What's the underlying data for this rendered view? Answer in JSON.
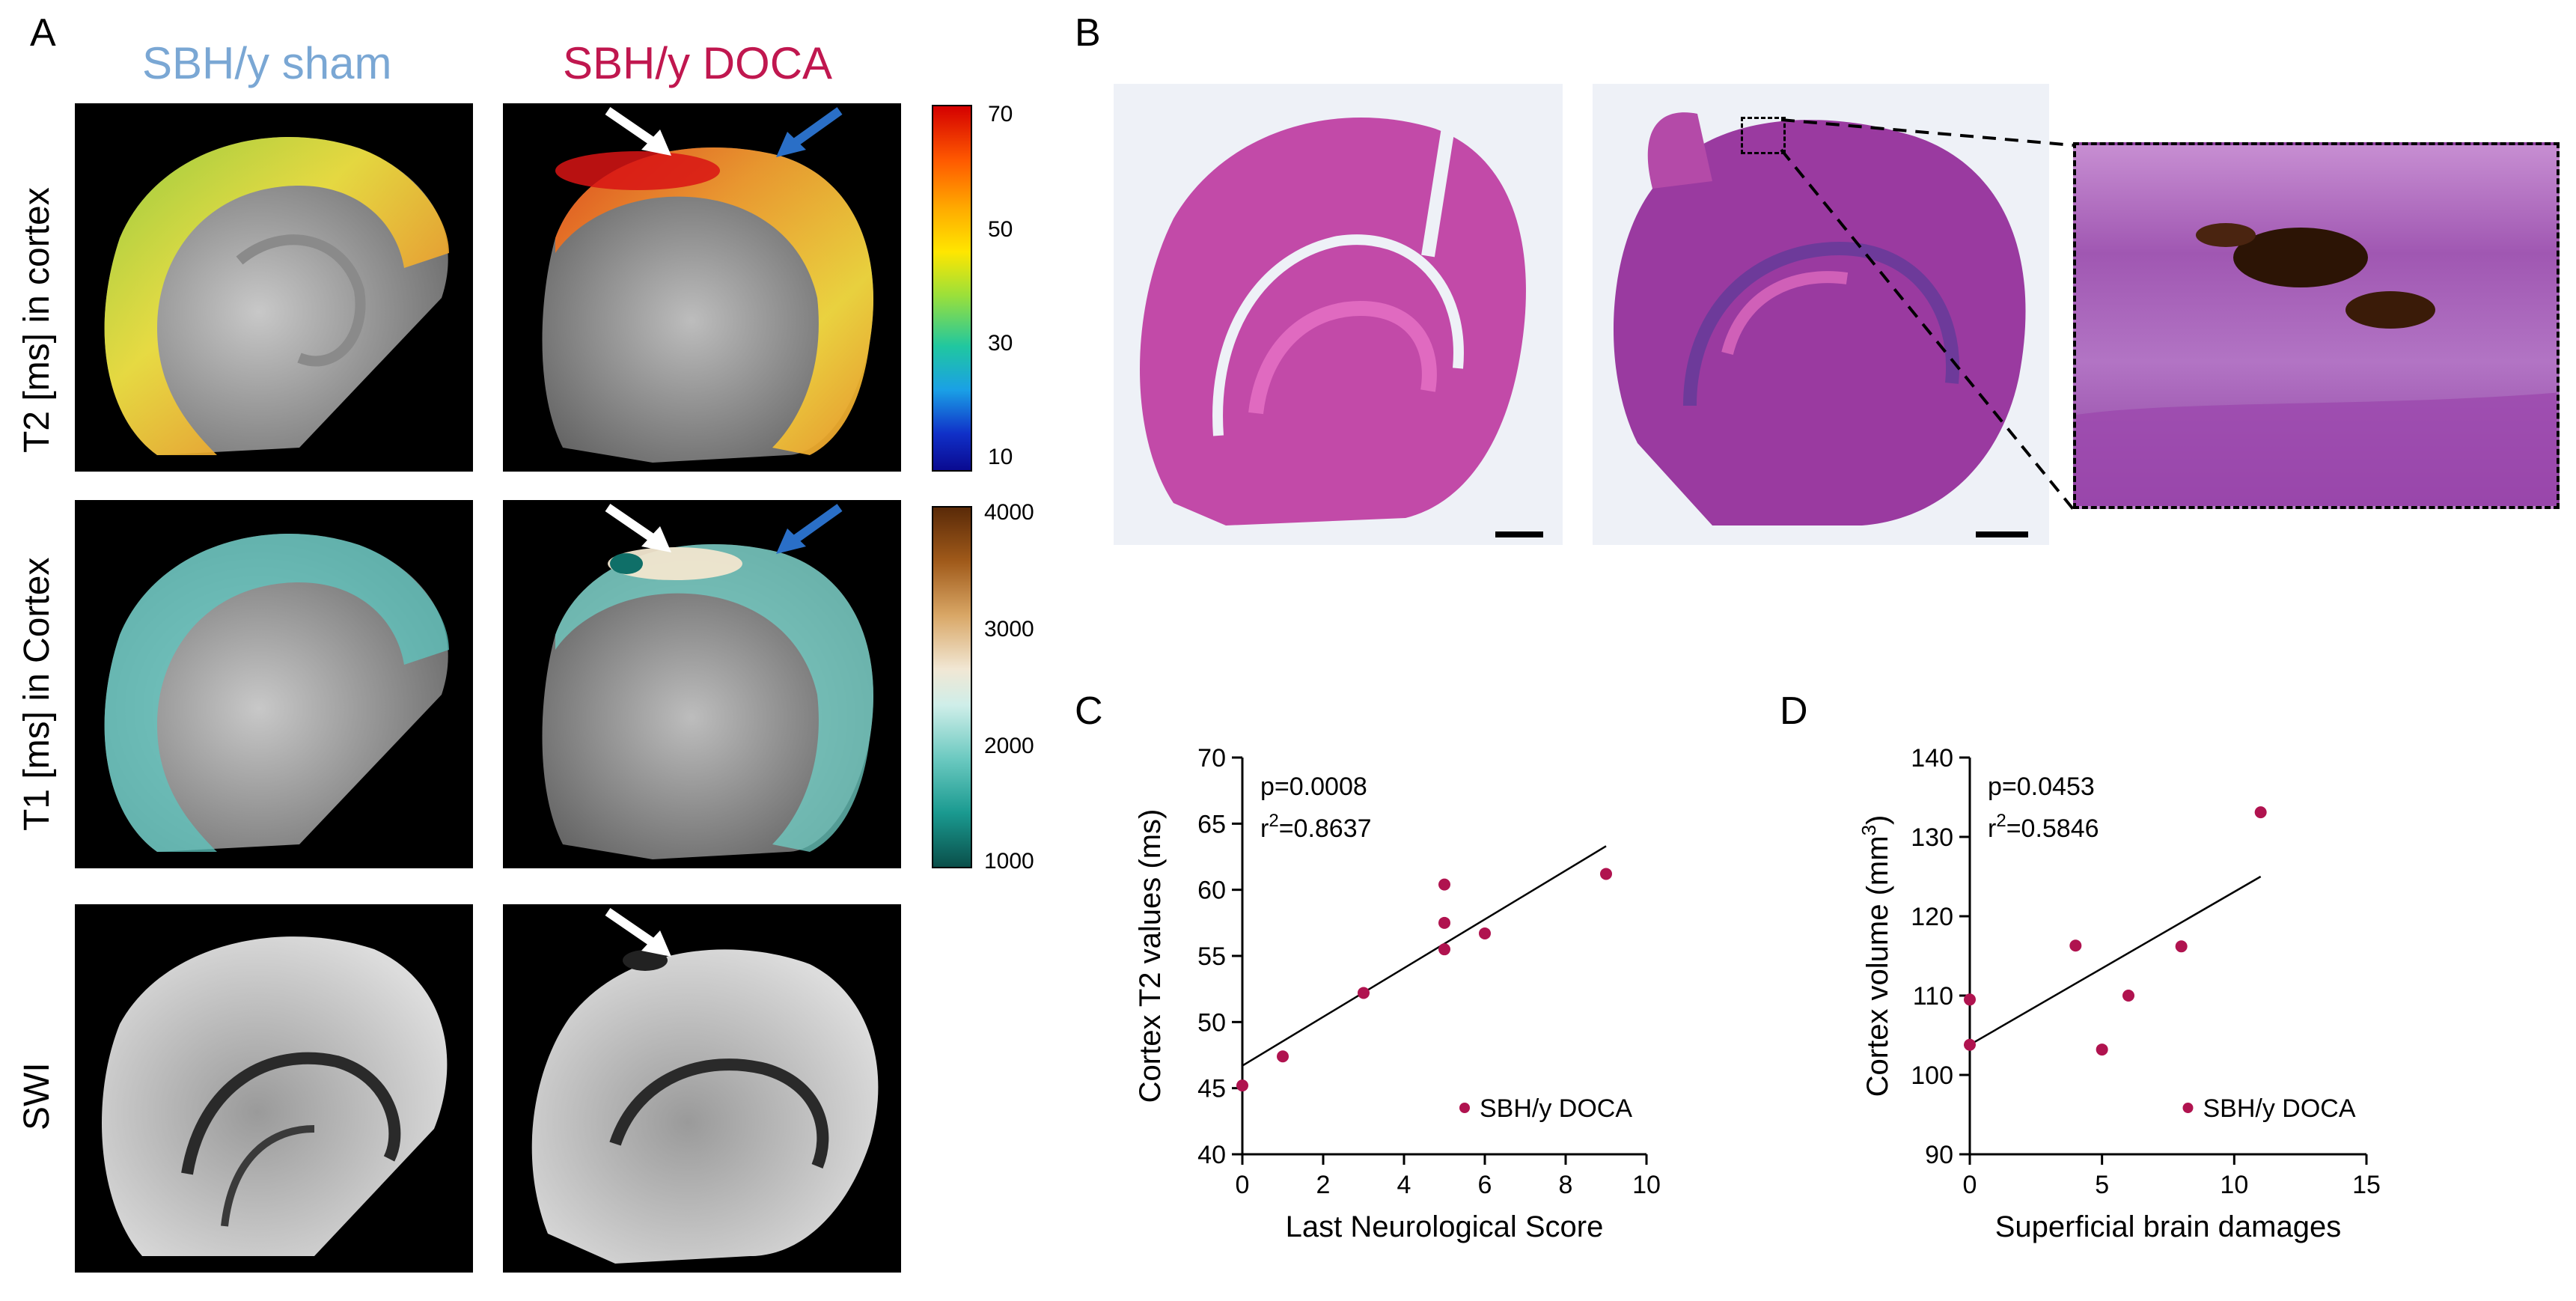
{
  "panels": {
    "A": {
      "letter": "A",
      "col_titles": [
        "SBH/y sham",
        "SBH/y DOCA"
      ],
      "col_title_colors": [
        "#7aa7d4",
        "#c0174f"
      ],
      "row_labels": [
        "T2 [ms] in cortex",
        "T1 [ms] in Cortex",
        "SWI"
      ],
      "colorbar_t2": {
        "ticks": [
          "70",
          "50",
          "30",
          "10"
        ]
      },
      "colorbar_t1": {
        "ticks": [
          "4000",
          "3000",
          "2000",
          "1000"
        ]
      }
    },
    "B": {
      "letter": "B"
    },
    "C": {
      "letter": "C"
    },
    "D": {
      "letter": "D"
    }
  },
  "chart_data": [
    {
      "type": "scatter",
      "panel": "C",
      "xlabel": "Last Neurological Score",
      "ylabel": "Cortex T2 values (ms)",
      "xlim": [
        0,
        10
      ],
      "ylim": [
        40,
        70
      ],
      "xticks": [
        "0",
        "2",
        "4",
        "6",
        "8",
        "10"
      ],
      "yticks": [
        "40",
        "45",
        "50",
        "55",
        "60",
        "65",
        "70"
      ],
      "annotation_p": "p=0.0008",
      "annotation_r2": "r",
      "annotation_r2_sup": "2",
      "annotation_r2_val": "=0.8637",
      "legend": "SBH/y DOCA",
      "series": [
        {
          "name": "SBH/y DOCA",
          "color": "#b0134f",
          "x": [
            0,
            1,
            3,
            5,
            5,
            5,
            6,
            9
          ],
          "y": [
            45.2,
            47.4,
            52.2,
            60.4,
            57.5,
            55.5,
            56.7,
            61.2
          ]
        }
      ],
      "fit": {
        "x": [
          0,
          9
        ],
        "y": [
          46.7,
          63.3
        ]
      }
    },
    {
      "type": "scatter",
      "panel": "D",
      "xlabel": "Superficial brain damages",
      "ylabel": "Cortex volume (mm",
      "ylabel_sup": "3",
      "ylabel_end": ")",
      "xlim": [
        0,
        15
      ],
      "ylim": [
        90,
        140
      ],
      "xticks": [
        "0",
        "5",
        "10",
        "15"
      ],
      "yticks": [
        "90",
        "100",
        "110",
        "120",
        "130",
        "140"
      ],
      "annotation_p": "p=0.0453",
      "annotation_r2": "r",
      "annotation_r2_sup": "2",
      "annotation_r2_val": "=0.5846",
      "legend": "SBH/y DOCA",
      "series": [
        {
          "name": "SBH/y DOCA",
          "color": "#b0134f",
          "x": [
            0,
            0,
            4,
            5,
            6,
            8,
            11
          ],
          "y": [
            109.5,
            103.8,
            116.3,
            103.2,
            110.0,
            116.2,
            133.1
          ]
        }
      ],
      "fit": {
        "x": [
          0,
          11
        ],
        "y": [
          103.8,
          125.0
        ]
      }
    }
  ]
}
